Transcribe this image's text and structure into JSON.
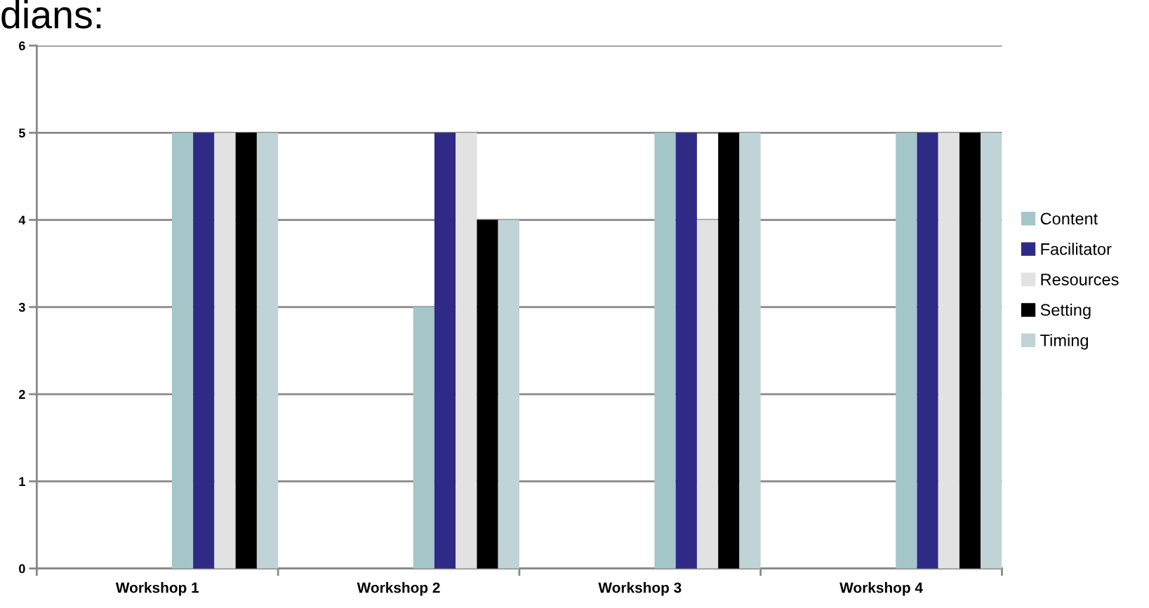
{
  "chart_data": {
    "type": "bar",
    "title": "dians:",
    "categories": [
      "Workshop 1",
      "Workshop 2",
      "Workshop 3",
      "Workshop 4"
    ],
    "series": [
      {
        "name": "Content",
        "color": "#a5c6c9",
        "values": [
          5,
          3,
          5,
          5
        ]
      },
      {
        "name": "Facilitator",
        "color": "#2e2a86",
        "values": [
          5,
          5,
          5,
          5
        ]
      },
      {
        "name": "Resources",
        "color": "#e2e2e2",
        "values": [
          5,
          5,
          4,
          5
        ]
      },
      {
        "name": "Setting",
        "color": "#000000",
        "values": [
          5,
          4,
          5,
          5
        ]
      },
      {
        "name": "Timing",
        "color": "#c0d3d6",
        "values": [
          5,
          4,
          5,
          5
        ]
      }
    ],
    "ylim": [
      0,
      6
    ],
    "yticks": [
      0,
      1,
      2,
      3,
      4,
      5,
      6
    ],
    "grid": "y",
    "legend": "right"
  }
}
